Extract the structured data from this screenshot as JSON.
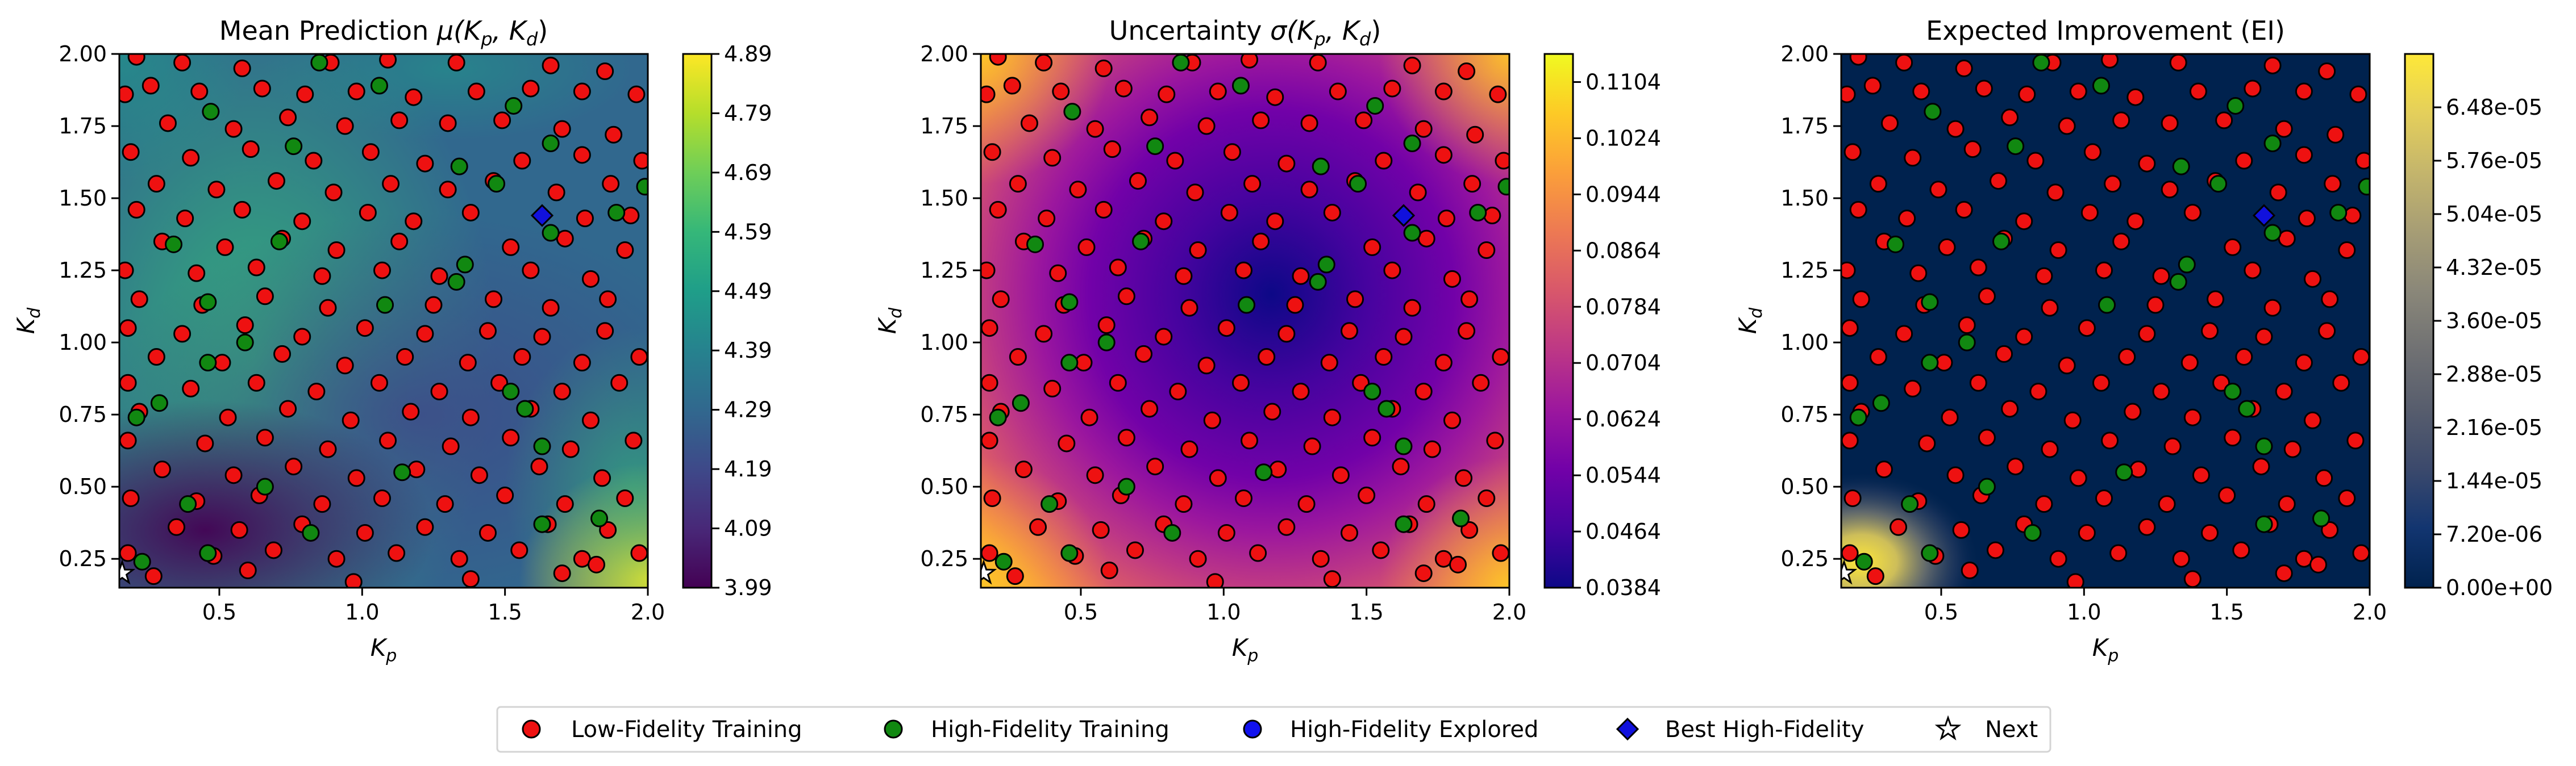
{
  "legend": {
    "items": [
      {
        "label": "Low-Fidelity Training",
        "marker": "circle",
        "color": "#ee1111"
      },
      {
        "label": "High-Fidelity Training",
        "marker": "circle",
        "color": "#118811"
      },
      {
        "label": "High-Fidelity Explored",
        "marker": "circle",
        "color": "#1111ee"
      },
      {
        "label": "Best High-Fidelity",
        "marker": "diamond",
        "color": "#1111dd"
      },
      {
        "label": "Next",
        "marker": "star",
        "color": "#ffffff"
      }
    ]
  },
  "chart_data": [
    {
      "type": "heatmap",
      "title": "Mean Prediction μ(Kp, Kd)",
      "xlabel": "Kp",
      "ylabel": "Kd",
      "xlim": [
        0.15,
        2.0
      ],
      "ylim": [
        0.15,
        2.0
      ],
      "xticks": [
        "0.5",
        "1.0",
        "1.5",
        "2.0"
      ],
      "yticks": [
        "0.25",
        "0.50",
        "0.75",
        "1.00",
        "1.25",
        "1.50",
        "1.75",
        "2.00"
      ],
      "colormap": "viridis",
      "colorbar_range": [
        3.99,
        4.89
      ],
      "colorbar_ticks": [
        "3.99",
        "4.09",
        "4.19",
        "4.29",
        "4.39",
        "4.49",
        "4.59",
        "4.69",
        "4.79",
        "4.89"
      ],
      "best_high_fidelity": [
        1.63,
        1.44
      ],
      "next_point": [
        0.16,
        0.2
      ]
    },
    {
      "type": "heatmap",
      "title": "Uncertainty σ(Kp, Kd)",
      "xlabel": "Kp",
      "ylabel": "Kd",
      "xlim": [
        0.15,
        2.0
      ],
      "ylim": [
        0.15,
        2.0
      ],
      "xticks": [
        "0.5",
        "1.0",
        "1.5",
        "2.0"
      ],
      "yticks": [
        "0.25",
        "0.50",
        "0.75",
        "1.00",
        "1.25",
        "1.50",
        "1.75",
        "2.00"
      ],
      "colormap": "plasma",
      "colorbar_range": [
        0.0384,
        0.1144
      ],
      "colorbar_ticks": [
        "0.0384",
        "0.0464",
        "0.0544",
        "0.0624",
        "0.0704",
        "0.0784",
        "0.0864",
        "0.0944",
        "0.1024",
        "0.1104"
      ],
      "best_high_fidelity": [
        1.63,
        1.44
      ],
      "next_point": [
        0.16,
        0.2
      ]
    },
    {
      "type": "heatmap",
      "title": "Expected Improvement (EI)",
      "xlabel": "Kp",
      "ylabel": "Kd",
      "xlim": [
        0.15,
        2.0
      ],
      "ylim": [
        0.15,
        2.0
      ],
      "xticks": [
        "0.5",
        "1.0",
        "1.5",
        "2.0"
      ],
      "yticks": [
        "0.25",
        "0.50",
        "0.75",
        "1.00",
        "1.25",
        "1.50",
        "1.75",
        "2.00"
      ],
      "colormap": "cividis",
      "colorbar_range": [
        0.0,
        7.2e-05
      ],
      "colorbar_ticks": [
        "0.00e+00",
        "7.20e-06",
        "1.44e-05",
        "2.16e-05",
        "2.88e-05",
        "3.60e-05",
        "4.32e-05",
        "5.04e-05",
        "5.76e-05",
        "6.48e-05"
      ],
      "best_high_fidelity": [
        1.63,
        1.44
      ],
      "next_point": [
        0.16,
        0.2
      ]
    }
  ],
  "training_points": {
    "low_fidelity": [
      [
        0.21,
        1.99
      ],
      [
        0.37,
        1.97
      ],
      [
        0.58,
        1.95
      ],
      [
        0.89,
        1.97
      ],
      [
        1.09,
        1.98
      ],
      [
        1.33,
        1.97
      ],
      [
        1.66,
        1.96
      ],
      [
        1.85,
        1.94
      ],
      [
        0.17,
        1.86
      ],
      [
        0.26,
        1.89
      ],
      [
        0.43,
        1.87
      ],
      [
        0.65,
        1.88
      ],
      [
        0.8,
        1.86
      ],
      [
        0.98,
        1.87
      ],
      [
        1.18,
        1.85
      ],
      [
        1.4,
        1.87
      ],
      [
        1.59,
        1.88
      ],
      [
        1.77,
        1.87
      ],
      [
        1.96,
        1.86
      ],
      [
        0.32,
        1.76
      ],
      [
        0.55,
        1.74
      ],
      [
        0.74,
        1.78
      ],
      [
        0.94,
        1.75
      ],
      [
        1.13,
        1.77
      ],
      [
        1.3,
        1.76
      ],
      [
        1.49,
        1.77
      ],
      [
        1.7,
        1.74
      ],
      [
        1.88,
        1.72
      ],
      [
        0.19,
        1.66
      ],
      [
        0.4,
        1.64
      ],
      [
        0.61,
        1.67
      ],
      [
        0.83,
        1.63
      ],
      [
        1.03,
        1.66
      ],
      [
        1.22,
        1.62
      ],
      [
        1.56,
        1.63
      ],
      [
        1.77,
        1.65
      ],
      [
        1.98,
        1.63
      ],
      [
        0.28,
        1.55
      ],
      [
        0.49,
        1.53
      ],
      [
        0.7,
        1.56
      ],
      [
        0.9,
        1.52
      ],
      [
        1.1,
        1.55
      ],
      [
        1.3,
        1.53
      ],
      [
        1.46,
        1.56
      ],
      [
        1.68,
        1.52
      ],
      [
        1.87,
        1.55
      ],
      [
        0.21,
        1.46
      ],
      [
        0.38,
        1.43
      ],
      [
        0.58,
        1.46
      ],
      [
        0.79,
        1.42
      ],
      [
        1.02,
        1.45
      ],
      [
        1.18,
        1.42
      ],
      [
        1.38,
        1.45
      ],
      [
        1.78,
        1.43
      ],
      [
        1.94,
        1.44
      ],
      [
        0.3,
        1.35
      ],
      [
        0.52,
        1.33
      ],
      [
        0.72,
        1.36
      ],
      [
        0.91,
        1.32
      ],
      [
        1.13,
        1.35
      ],
      [
        1.52,
        1.33
      ],
      [
        1.71,
        1.36
      ],
      [
        1.92,
        1.32
      ],
      [
        0.17,
        1.25
      ],
      [
        0.42,
        1.24
      ],
      [
        0.63,
        1.26
      ],
      [
        0.86,
        1.23
      ],
      [
        1.07,
        1.25
      ],
      [
        1.27,
        1.23
      ],
      [
        1.59,
        1.25
      ],
      [
        1.8,
        1.22
      ],
      [
        0.22,
        1.15
      ],
      [
        0.44,
        1.13
      ],
      [
        0.66,
        1.16
      ],
      [
        0.88,
        1.12
      ],
      [
        1.25,
        1.13
      ],
      [
        1.46,
        1.15
      ],
      [
        1.66,
        1.12
      ],
      [
        1.86,
        1.15
      ],
      [
        0.18,
        1.05
      ],
      [
        0.37,
        1.03
      ],
      [
        0.59,
        1.06
      ],
      [
        0.79,
        1.02
      ],
      [
        1.01,
        1.05
      ],
      [
        1.22,
        1.03
      ],
      [
        1.44,
        1.04
      ],
      [
        1.63,
        1.02
      ],
      [
        1.85,
        1.04
      ],
      [
        0.28,
        0.95
      ],
      [
        0.51,
        0.93
      ],
      [
        0.72,
        0.96
      ],
      [
        0.94,
        0.92
      ],
      [
        1.15,
        0.95
      ],
      [
        1.37,
        0.93
      ],
      [
        1.56,
        0.95
      ],
      [
        1.77,
        0.93
      ],
      [
        1.97,
        0.95
      ],
      [
        0.18,
        0.86
      ],
      [
        0.4,
        0.84
      ],
      [
        0.63,
        0.86
      ],
      [
        0.84,
        0.83
      ],
      [
        1.06,
        0.86
      ],
      [
        1.27,
        0.83
      ],
      [
        1.48,
        0.86
      ],
      [
        1.7,
        0.83
      ],
      [
        1.9,
        0.86
      ],
      [
        0.22,
        0.76
      ],
      [
        0.53,
        0.74
      ],
      [
        0.74,
        0.77
      ],
      [
        0.96,
        0.73
      ],
      [
        1.17,
        0.76
      ],
      [
        1.38,
        0.74
      ],
      [
        1.59,
        0.77
      ],
      [
        1.8,
        0.73
      ],
      [
        0.18,
        0.66
      ],
      [
        0.45,
        0.65
      ],
      [
        0.66,
        0.67
      ],
      [
        0.88,
        0.63
      ],
      [
        1.09,
        0.66
      ],
      [
        1.31,
        0.64
      ],
      [
        1.52,
        0.67
      ],
      [
        1.73,
        0.63
      ],
      [
        1.95,
        0.66
      ],
      [
        0.3,
        0.56
      ],
      [
        0.55,
        0.54
      ],
      [
        0.76,
        0.57
      ],
      [
        0.98,
        0.53
      ],
      [
        1.19,
        0.56
      ],
      [
        1.41,
        0.54
      ],
      [
        1.62,
        0.57
      ],
      [
        1.84,
        0.53
      ],
      [
        0.19,
        0.46
      ],
      [
        0.42,
        0.45
      ],
      [
        0.64,
        0.47
      ],
      [
        0.86,
        0.44
      ],
      [
        1.07,
        0.46
      ],
      [
        1.29,
        0.44
      ],
      [
        1.5,
        0.47
      ],
      [
        1.71,
        0.44
      ],
      [
        1.92,
        0.46
      ],
      [
        0.35,
        0.36
      ],
      [
        0.57,
        0.35
      ],
      [
        0.79,
        0.37
      ],
      [
        1.01,
        0.34
      ],
      [
        1.22,
        0.36
      ],
      [
        1.44,
        0.34
      ],
      [
        1.65,
        0.37
      ],
      [
        1.86,
        0.35
      ],
      [
        0.18,
        0.27
      ],
      [
        0.48,
        0.26
      ],
      [
        0.69,
        0.28
      ],
      [
        0.91,
        0.25
      ],
      [
        1.12,
        0.27
      ],
      [
        1.34,
        0.25
      ],
      [
        1.55,
        0.28
      ],
      [
        1.77,
        0.25
      ],
      [
        1.97,
        0.27
      ],
      [
        0.27,
        0.19
      ],
      [
        0.6,
        0.21
      ],
      [
        0.97,
        0.17
      ],
      [
        1.38,
        0.18
      ],
      [
        1.7,
        0.2
      ],
      [
        1.82,
        0.23
      ]
    ],
    "high_fidelity": [
      [
        0.85,
        1.97
      ],
      [
        1.06,
        1.89
      ],
      [
        0.47,
        1.8
      ],
      [
        1.53,
        1.82
      ],
      [
        0.76,
        1.68
      ],
      [
        1.66,
        1.69
      ],
      [
        1.34,
        1.61
      ],
      [
        1.47,
        1.55
      ],
      [
        1.99,
        1.54
      ],
      [
        1.89,
        1.45
      ],
      [
        1.66,
        1.38
      ],
      [
        0.71,
        1.35
      ],
      [
        1.36,
        1.27
      ],
      [
        0.34,
        1.34
      ],
      [
        1.33,
        1.21
      ],
      [
        1.08,
        1.13
      ],
      [
        0.46,
        1.14
      ],
      [
        0.59,
        1.0
      ],
      [
        0.46,
        0.93
      ],
      [
        0.29,
        0.79
      ],
      [
        1.52,
        0.83
      ],
      [
        1.57,
        0.77
      ],
      [
        0.21,
        0.74
      ],
      [
        1.63,
        0.64
      ],
      [
        1.14,
        0.55
      ],
      [
        0.66,
        0.5
      ],
      [
        1.83,
        0.39
      ],
      [
        1.63,
        0.37
      ],
      [
        0.82,
        0.34
      ],
      [
        0.46,
        0.27
      ],
      [
        0.23,
        0.24
      ],
      [
        0.39,
        0.44
      ]
    ],
    "high_fidelity_explored": []
  }
}
